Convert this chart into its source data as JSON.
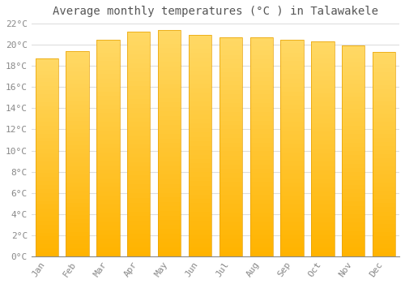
{
  "title": "Average monthly temperatures (°C ) in Talawakele",
  "months": [
    "Jan",
    "Feb",
    "Mar",
    "Apr",
    "May",
    "Jun",
    "Jul",
    "Aug",
    "Sep",
    "Oct",
    "Nov",
    "Dec"
  ],
  "values": [
    18.7,
    19.4,
    20.5,
    21.2,
    21.4,
    20.9,
    20.7,
    20.7,
    20.5,
    20.3,
    19.9,
    19.3
  ],
  "bar_color_bottom": "#FFB300",
  "bar_color_top": "#FFD966",
  "bar_edge_color": "#E8A000",
  "background_color": "#FFFFFF",
  "grid_color": "#DDDDDD",
  "ylim": [
    0,
    22
  ],
  "ytick_step": 2,
  "title_fontsize": 10,
  "tick_fontsize": 8,
  "font_family": "monospace",
  "bar_width": 0.75
}
